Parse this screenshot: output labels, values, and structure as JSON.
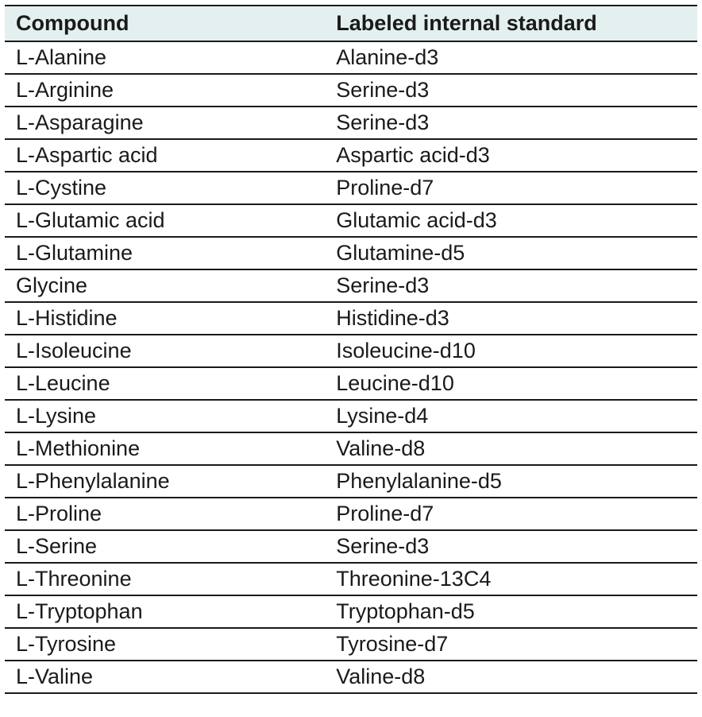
{
  "table": {
    "columns": [
      "Compound",
      "Labeled internal standard"
    ],
    "header_bg": "#e4eff0",
    "border_color": "#1a1a1a",
    "text_color": "#1a1a1a",
    "font_size_pt": 20,
    "header_font_weight": 700,
    "cell_font_weight": 400,
    "col_widths_pct": [
      46,
      54
    ],
    "rows": [
      [
        "L-Alanine",
        "Alanine-d3"
      ],
      [
        "L-Arginine",
        "Serine-d3"
      ],
      [
        "L-Asparagine",
        "Serine-d3"
      ],
      [
        "L-Aspartic acid",
        "Aspartic acid-d3"
      ],
      [
        "L-Cystine",
        "Proline-d7"
      ],
      [
        "L-Glutamic acid",
        "Glutamic acid-d3"
      ],
      [
        "L-Glutamine",
        "Glutamine-d5"
      ],
      [
        "Glycine",
        "Serine-d3"
      ],
      [
        "L-Histidine",
        "Histidine-d3"
      ],
      [
        "L-Isoleucine",
        "Isoleucine-d10"
      ],
      [
        "L-Leucine",
        "Leucine-d10"
      ],
      [
        "L-Lysine",
        "Lysine-d4"
      ],
      [
        "L-Methionine",
        "Valine-d8"
      ],
      [
        "L-Phenylalanine",
        "Phenylalanine-d5"
      ],
      [
        "L-Proline",
        "Proline-d7"
      ],
      [
        "L-Serine",
        "Serine-d3"
      ],
      [
        "L-Threonine",
        "Threonine-13C4"
      ],
      [
        "L-Tryptophan",
        "Tryptophan-d5"
      ],
      [
        "L-Tyrosine",
        "Tyrosine-d7"
      ],
      [
        "L-Valine",
        "Valine-d8"
      ]
    ]
  }
}
